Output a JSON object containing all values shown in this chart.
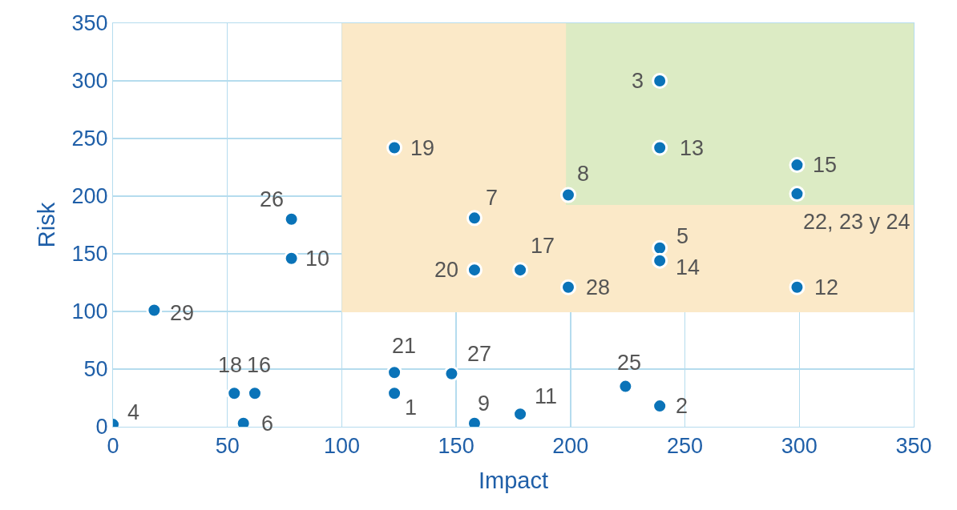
{
  "chart_data": {
    "type": "scatter",
    "xlabel": "Impact",
    "ylabel": "Risk",
    "series": [
      {
        "type": "line",
        "marker": "none",
        "color": "#fbe9c8",
        "x": [
          100,
          350
        ],
        "values": [
          100,
          100
        ],
        "lower": [
          100,
          100
        ],
        "upper": [
          350,
          350
        ]
      },
      {
        "type": "line",
        "marker": "none",
        "color": "#dcebc4",
        "x": [
          198,
          350
        ],
        "values": [
          193,
          193
        ],
        "lower": [
          193,
          193
        ],
        "upper": [
          350,
          350
        ]
      },
      {
        "type": "scatter",
        "marker": "circle",
        "color": "#0a73b8",
        "x": [
          0,
          18,
          53,
          62,
          57,
          78,
          78,
          123,
          123,
          123,
          148,
          158,
          158,
          158,
          178,
          178,
          199,
          199,
          224,
          239,
          239,
          239,
          239,
          239,
          299,
          299,
          299
        ],
        "values": [
          2,
          101,
          29,
          29,
          3,
          180,
          146,
          47,
          29,
          242,
          46,
          3,
          136,
          181,
          136,
          11,
          121,
          201,
          35,
          18,
          300,
          242,
          155,
          144,
          227,
          202,
          121
        ]
      }
    ],
    "grid": true,
    "xlim": [
      0,
      350
    ],
    "xticks": [
      0,
      50,
      100,
      150,
      200,
      250,
      300,
      350
    ],
    "ylim": [
      0,
      350
    ],
    "yticks": [
      0,
      50,
      100,
      150,
      200,
      250,
      300,
      350
    ],
    "annotations": [
      {
        "text": "4",
        "x": 0,
        "y": 2
      },
      {
        "text": "29",
        "x": 18,
        "y": 101
      },
      {
        "text": "18",
        "x": 53,
        "y": 29
      },
      {
        "text": "16",
        "x": 62,
        "y": 29
      },
      {
        "text": "6",
        "x": 57,
        "y": 3
      },
      {
        "text": "26",
        "x": 78,
        "y": 180
      },
      {
        "text": "10",
        "x": 78,
        "y": 146
      },
      {
        "text": "21",
        "x": 123,
        "y": 47
      },
      {
        "text": "1",
        "x": 123,
        "y": 29
      },
      {
        "text": "19",
        "x": 123,
        "y": 242
      },
      {
        "text": "27",
        "x": 148,
        "y": 46
      },
      {
        "text": "9",
        "x": 158,
        "y": 3
      },
      {
        "text": "20",
        "x": 158,
        "y": 136
      },
      {
        "text": "7",
        "x": 158,
        "y": 181
      },
      {
        "text": "17",
        "x": 178,
        "y": 136
      },
      {
        "text": "11",
        "x": 178,
        "y": 11
      },
      {
        "text": "28",
        "x": 199,
        "y": 121
      },
      {
        "text": "8",
        "x": 199,
        "y": 201
      },
      {
        "text": "25",
        "x": 224,
        "y": 35
      },
      {
        "text": "2",
        "x": 239,
        "y": 18
      },
      {
        "text": "3",
        "x": 239,
        "y": 300
      },
      {
        "text": "13",
        "x": 239,
        "y": 242
      },
      {
        "text": "5",
        "x": 239,
        "y": 155
      },
      {
        "text": "14",
        "x": 239,
        "y": 144
      },
      {
        "text": "15",
        "x": 299,
        "y": 227
      },
      {
        "text": "22, 23 y 24",
        "x": 299,
        "y": 202
      },
      {
        "text": "12",
        "x": 299,
        "y": 121
      }
    ]
  }
}
